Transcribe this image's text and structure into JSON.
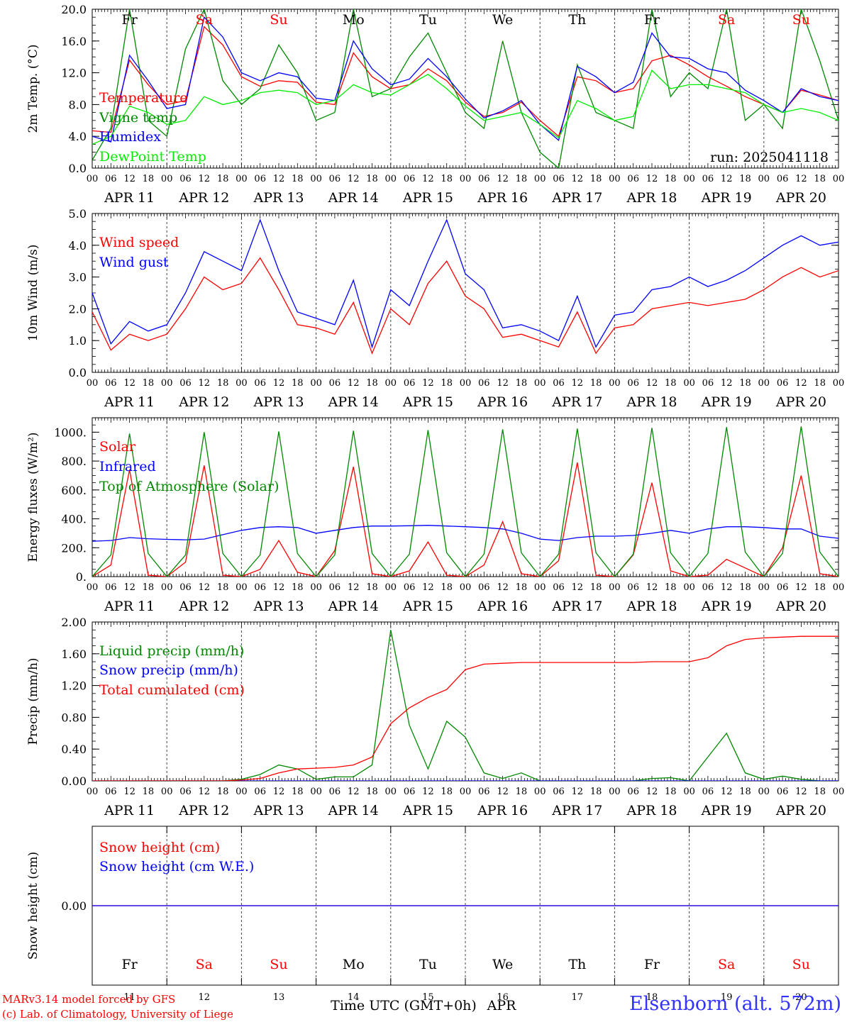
{
  "chart_data": [
    {
      "type": "line",
      "ylabel": "2m Temp. (°C)",
      "ylim": [
        0,
        20
      ],
      "yticks": [
        "0.0",
        "4.0",
        "8.0",
        "12.0",
        "16.0",
        "20.0"
      ],
      "x_unit": "hours since APR 11 00 UTC",
      "x": [
        0,
        6,
        12,
        18,
        24,
        30,
        36,
        42,
        48,
        54,
        60,
        66,
        72,
        78,
        84,
        90,
        96,
        102,
        108,
        114,
        120,
        126,
        132,
        138,
        144,
        150,
        156,
        162,
        168,
        174,
        180,
        186,
        192,
        198,
        204,
        210,
        216,
        222,
        228,
        234,
        240
      ],
      "run": "run: 2025041118",
      "day_names": [
        "Fr",
        "Sa",
        "Su",
        "Mo",
        "Tu",
        "We",
        "Th",
        "Fr",
        "Sa",
        "Su"
      ],
      "series": [
        {
          "name": "Temperature",
          "color": "#ff0000",
          "values": [
            4.7,
            4.5,
            13.6,
            10.5,
            8.0,
            8.5,
            17.8,
            15.5,
            11.5,
            10.3,
            11.0,
            10.8,
            8.3,
            8.0,
            14.5,
            11.5,
            10.0,
            10.5,
            12.5,
            11.0,
            8.3,
            6.5,
            7.0,
            8.3,
            6.0,
            4.0,
            11.5,
            11.0,
            9.5,
            10.0,
            13.5,
            14.2,
            13.0,
            11.5,
            10.3,
            9.0,
            8.0,
            7.0,
            9.8,
            9.2,
            8.5
          ]
        },
        {
          "name": "Vigne temp",
          "color": "#008800",
          "values": [
            1.0,
            5.0,
            20.0,
            6.0,
            4.0,
            15.0,
            20.0,
            11.0,
            8.0,
            10.0,
            15.5,
            12.0,
            6.0,
            7.0,
            20.0,
            9.0,
            10.0,
            14.0,
            17.0,
            12.0,
            7.0,
            5.0,
            16.0,
            7.0,
            2.0,
            0.0,
            13.0,
            7.0,
            6.0,
            5.0,
            20.0,
            9.0,
            12.0,
            10.0,
            20.0,
            6.0,
            8.0,
            5.0,
            20.0,
            13.5,
            6.0
          ]
        },
        {
          "name": "Humidex",
          "color": "#0000ff",
          "values": [
            4.0,
            3.3,
            14.2,
            11.0,
            7.5,
            8.0,
            19.0,
            16.5,
            12.0,
            11.0,
            12.0,
            11.5,
            8.8,
            8.5,
            16.0,
            12.5,
            10.5,
            11.2,
            13.8,
            11.5,
            8.7,
            6.3,
            7.2,
            8.5,
            5.5,
            3.5,
            12.8,
            11.5,
            9.5,
            10.8,
            17.0,
            14.0,
            13.8,
            12.5,
            12.0,
            9.8,
            8.5,
            7.0,
            10.0,
            9.0,
            8.5
          ]
        },
        {
          "name": "DewPoint Temp",
          "color": "#00ee00",
          "values": [
            3.0,
            4.0,
            7.8,
            7.0,
            5.5,
            6.0,
            9.0,
            8.0,
            8.5,
            9.5,
            9.8,
            9.5,
            8.0,
            8.5,
            10.5,
            9.5,
            9.2,
            10.5,
            11.8,
            10.0,
            7.8,
            6.0,
            6.5,
            7.0,
            5.5,
            3.8,
            8.5,
            7.5,
            6.0,
            6.5,
            12.3,
            10.0,
            10.5,
            10.5,
            10.0,
            9.5,
            8.0,
            7.0,
            7.5,
            7.0,
            6.0
          ]
        }
      ]
    },
    {
      "type": "line",
      "ylabel": "10m Wind (m/s)",
      "ylim": [
        0,
        5
      ],
      "yticks": [
        "0.0",
        "1.0",
        "2.0",
        "3.0",
        "4.0",
        "5.0"
      ],
      "x_unit": "hours since APR 11 00 UTC",
      "x": [
        0,
        6,
        12,
        18,
        24,
        30,
        36,
        42,
        48,
        54,
        60,
        66,
        72,
        78,
        84,
        90,
        96,
        102,
        108,
        114,
        120,
        126,
        132,
        138,
        144,
        150,
        156,
        162,
        168,
        174,
        180,
        186,
        192,
        198,
        204,
        210,
        216,
        222,
        228,
        234,
        240
      ],
      "series": [
        {
          "name": "Wind speed",
          "color": "#ff0000",
          "values": [
            1.9,
            0.7,
            1.2,
            1.0,
            1.2,
            2.0,
            3.0,
            2.6,
            2.8,
            3.6,
            2.6,
            1.5,
            1.4,
            1.2,
            2.2,
            0.6,
            2.0,
            1.5,
            2.8,
            3.5,
            2.4,
            2.0,
            1.1,
            1.2,
            1.0,
            0.8,
            1.9,
            0.6,
            1.4,
            1.5,
            2.0,
            2.1,
            2.2,
            2.1,
            2.2,
            2.3,
            2.6,
            3.0,
            3.3,
            3.0,
            3.2
          ]
        },
        {
          "name": "Wind gust",
          "color": "#0000ff",
          "values": [
            2.5,
            0.9,
            1.6,
            1.3,
            1.5,
            2.5,
            3.8,
            3.5,
            3.2,
            4.8,
            3.2,
            1.9,
            1.7,
            1.5,
            2.9,
            0.8,
            2.6,
            2.1,
            3.5,
            4.8,
            3.1,
            2.6,
            1.4,
            1.5,
            1.3,
            1.0,
            2.4,
            0.8,
            1.8,
            1.9,
            2.6,
            2.7,
            3.0,
            2.7,
            2.9,
            3.2,
            3.6,
            4.0,
            4.3,
            4.0,
            4.1
          ]
        }
      ]
    },
    {
      "type": "line",
      "ylabel": "Energy fluxes (W/m²)",
      "ylim": [
        0,
        1100
      ],
      "yticks": [
        "0.",
        "200.",
        "400.",
        "600.",
        "800.",
        "1000."
      ],
      "x_unit": "hours since APR 11 00 UTC",
      "x": [
        0,
        6,
        12,
        18,
        24,
        30,
        36,
        42,
        48,
        54,
        60,
        66,
        72,
        78,
        84,
        90,
        96,
        102,
        108,
        114,
        120,
        126,
        132,
        138,
        144,
        150,
        156,
        162,
        168,
        174,
        180,
        186,
        192,
        198,
        204,
        210,
        216,
        222,
        228,
        234,
        240
      ],
      "series": [
        {
          "name": "Solar",
          "color": "#ff0000",
          "values": [
            0,
            80,
            740,
            10,
            0,
            100,
            770,
            10,
            0,
            50,
            250,
            30,
            0,
            180,
            760,
            20,
            0,
            40,
            240,
            10,
            0,
            80,
            380,
            20,
            0,
            110,
            790,
            10,
            0,
            150,
            650,
            40,
            0,
            10,
            120,
            60,
            0,
            200,
            700,
            20,
            0
          ]
        },
        {
          "name": "Infrared",
          "color": "#0000ff",
          "values": [
            245,
            250,
            270,
            262,
            258,
            255,
            260,
            290,
            320,
            340,
            345,
            340,
            300,
            320,
            340,
            350,
            350,
            352,
            355,
            350,
            345,
            340,
            330,
            300,
            260,
            250,
            270,
            280,
            280,
            285,
            300,
            320,
            300,
            330,
            345,
            345,
            340,
            330,
            330,
            280,
            265
          ]
        },
        {
          "name": "Top of Atmosphere (Solar)",
          "color": "#008800",
          "values": [
            0,
            150,
            990,
            160,
            0,
            150,
            1000,
            160,
            0,
            150,
            1005,
            160,
            0,
            150,
            1010,
            160,
            0,
            155,
            1015,
            165,
            0,
            155,
            1020,
            165,
            0,
            155,
            1025,
            165,
            0,
            155,
            1030,
            165,
            0,
            160,
            1035,
            170,
            0,
            160,
            1040,
            170,
            0
          ]
        }
      ]
    },
    {
      "type": "line",
      "ylabel": "Precip (mm/h)",
      "ylim": [
        0,
        2
      ],
      "yticks": [
        "0.00",
        "0.40",
        "0.80",
        "1.20",
        "1.60",
        "2.00"
      ],
      "x_unit": "hours since APR 11 00 UTC",
      "x": [
        0,
        6,
        12,
        18,
        24,
        30,
        36,
        42,
        48,
        54,
        60,
        66,
        72,
        78,
        84,
        90,
        96,
        102,
        108,
        114,
        120,
        126,
        132,
        138,
        144,
        150,
        156,
        162,
        168,
        174,
        180,
        186,
        192,
        198,
        204,
        210,
        216,
        222,
        228,
        234,
        240
      ],
      "series": [
        {
          "name": "Liquid precip (mm/h)",
          "color": "#008800",
          "values": [
            0,
            0,
            0,
            0,
            0,
            0,
            0,
            0,
            0.02,
            0.08,
            0.2,
            0.15,
            0.02,
            0.05,
            0.05,
            0.2,
            1.9,
            0.7,
            0.15,
            0.75,
            0.55,
            0.1,
            0.03,
            0.1,
            0,
            0,
            0,
            0,
            0,
            0,
            0.03,
            0.04,
            0,
            0.3,
            0.6,
            0.1,
            0.02,
            0.06,
            0.02,
            0,
            0
          ]
        },
        {
          "name": "Snow precip (mm/h)",
          "color": "#0000ff",
          "values": [
            0,
            0,
            0,
            0,
            0,
            0,
            0,
            0,
            0,
            0,
            0,
            0,
            0,
            0,
            0,
            0,
            0,
            0,
            0,
            0,
            0,
            0,
            0,
            0,
            0,
            0,
            0,
            0,
            0,
            0,
            0,
            0,
            0,
            0,
            0,
            0,
            0,
            0,
            0,
            0,
            0
          ]
        },
        {
          "name": "Total cumulated (cm)",
          "color": "#ff0000",
          "values": [
            0,
            0,
            0,
            0,
            0,
            0,
            0,
            0,
            0.01,
            0.03,
            0.1,
            0.15,
            0.16,
            0.17,
            0.2,
            0.3,
            0.72,
            0.92,
            1.05,
            1.15,
            1.4,
            1.47,
            1.48,
            1.49,
            1.49,
            1.49,
            1.49,
            1.49,
            1.49,
            1.49,
            1.5,
            1.5,
            1.5,
            1.55,
            1.7,
            1.78,
            1.8,
            1.81,
            1.82,
            1.82,
            1.82
          ]
        }
      ]
    },
    {
      "type": "line",
      "ylabel": "Snow height (cm)",
      "yticks": [
        "0.00"
      ],
      "x_unit": "hours since APR 11 00 UTC",
      "x": [
        0,
        240
      ],
      "series": [
        {
          "name": "Snow height (cm)",
          "color": "#ff0000",
          "values": [
            0,
            0
          ]
        },
        {
          "name": "Snow height (cm W.E.)",
          "color": "#0000ff",
          "values": [
            0,
            0
          ]
        }
      ],
      "day_names": [
        "Fr",
        "Sa",
        "Su",
        "Mo",
        "Tu",
        "We",
        "Th",
        "Fr",
        "Sa",
        "Su"
      ],
      "day_numbers": [
        "11",
        "12",
        "13",
        "14",
        "15",
        "16",
        "17",
        "18",
        "19",
        "20"
      ],
      "xlabel": "Time UTC (GMT+0h)",
      "month": "APR"
    }
  ],
  "axis": {
    "hour_labels": [
      "00",
      "06",
      "12",
      "18"
    ],
    "end_label": "00",
    "date_labels": [
      "APR 11",
      "APR 12",
      "APR 13",
      "APR 14",
      "APR 15",
      "APR 16",
      "APR 17",
      "APR 18",
      "APR 19",
      "APR 20"
    ]
  },
  "colors": {
    "weekday": "#000000",
    "weekend": "#ff0000"
  },
  "footer": {
    "line1": "MARv3.14 model forced by GFS",
    "line2": "(c) Lab. of Climatology, University of Liege",
    "station": "Elsenborn (alt. 572m)"
  }
}
